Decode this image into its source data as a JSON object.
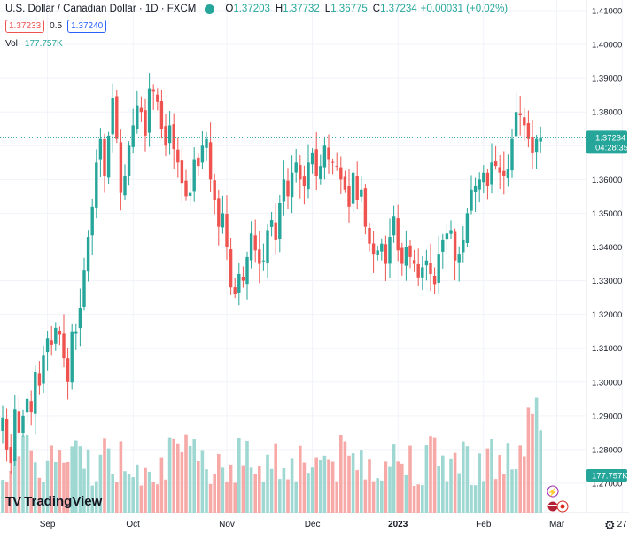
{
  "header": {
    "symbol": "U.S. Dollar / Canadian Dollar · 1D · FXCM",
    "open_label": "O",
    "open": "1.37203",
    "high_label": "H",
    "high": "1.37732",
    "low_label": "L",
    "low": "1.36775",
    "close_label": "C",
    "close": "1.37234",
    "change": "+0.00031 (+0.02%)",
    "sell": "1.37233",
    "spread": "0.5",
    "buy": "1.37240"
  },
  "volume": {
    "label": "Vol",
    "value": "177.757K"
  },
  "logo": "TradingView",
  "colors": {
    "up": "#26a69a",
    "down": "#ef5350",
    "up_vol": "#9fd8d2",
    "down_vol": "#f7a9a7",
    "grid": "#f0f3fa"
  },
  "icons": [
    "lightning-icon",
    "flag-us-icon",
    "flag-ca-icon",
    "settings-icon"
  ],
  "chart_data": {
    "type": "candlestick",
    "ylim": [
      1.265,
      1.411
    ],
    "yticks": [
      "1.41000",
      "1.40000",
      "1.39000",
      "1.38000",
      "1.37000",
      "1.36000",
      "1.35000",
      "1.34000",
      "1.33000",
      "1.32000",
      "1.31000",
      "1.30000",
      "1.29000",
      "1.28000",
      "1.27000"
    ],
    "xticks": [
      {
        "label": "Sep",
        "index": 11
      },
      {
        "label": "Oct",
        "index": 32
      },
      {
        "label": "Nov",
        "index": 55
      },
      {
        "label": "Dec",
        "index": 76
      },
      {
        "label": "2023",
        "index": 97
      },
      {
        "label": "Feb",
        "index": 118
      },
      {
        "label": "Mar",
        "index": 136
      },
      {
        "label": "27",
        "index": 152
      }
    ],
    "last_price": {
      "value": 1.37234,
      "label": "1.37234",
      "countdown": "04:28:35"
    },
    "volume_label": "177.757K",
    "grid": true,
    "closes": [
      1.2895,
      1.28,
      1.276,
      1.292,
      1.285,
      1.29,
      1.295,
      1.291,
      1.303,
      1.299,
      1.308,
      1.313,
      1.311,
      1.316,
      1.314,
      1.307,
      1.3,
      1.315,
      1.315,
      1.322,
      1.333,
      1.343,
      1.352,
      1.365,
      1.372,
      1.361,
      1.373,
      1.384,
      1.372,
      1.356,
      1.361,
      1.37,
      1.376,
      1.382,
      1.38,
      1.373,
      1.387,
      1.386,
      1.383,
      1.375,
      1.37,
      1.376,
      1.369,
      1.365,
      1.359,
      1.355,
      1.356,
      1.366,
      1.364,
      1.37,
      1.372,
      1.36,
      1.354,
      1.346,
      1.35,
      1.34,
      1.328,
      1.326,
      1.332,
      1.33,
      1.337,
      1.344,
      1.339,
      1.335,
      1.336,
      1.345,
      1.348,
      1.342,
      1.353,
      1.36,
      1.355,
      1.362,
      1.365,
      1.36,
      1.358,
      1.365,
      1.368,
      1.361,
      1.364,
      1.37,
      1.366,
      1.365,
      1.364,
      1.36,
      1.357,
      1.352,
      1.362,
      1.354,
      1.357,
      1.346,
      1.341,
      1.338,
      1.339,
      1.341,
      1.335,
      1.343,
      1.349,
      1.339,
      1.335,
      1.34,
      1.337,
      1.335,
      1.331,
      1.334,
      1.336,
      1.332,
      1.329,
      1.338,
      1.342,
      1.344,
      1.345,
      1.336,
      1.338,
      1.342,
      1.35,
      1.357,
      1.358,
      1.36,
      1.362,
      1.358,
      1.365,
      1.364,
      1.362,
      1.361,
      1.363,
      1.372,
      1.38,
      1.379,
      1.376,
      1.372,
      1.368,
      1.372,
      1.3723
    ]
  }
}
